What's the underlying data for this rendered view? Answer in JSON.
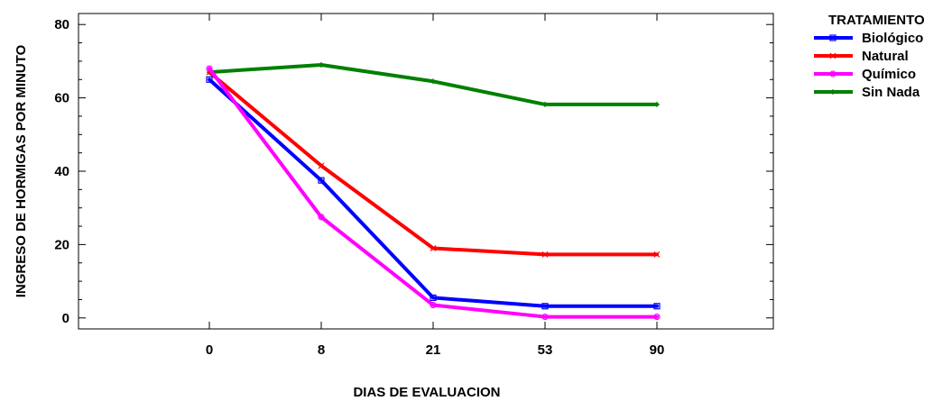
{
  "chart_data": {
    "type": "line",
    "xlabel": "DIAS DE EVALUACION",
    "ylabel": "INGRESO DE HORMIGAS POR MINUTO",
    "categories": [
      "0",
      "8",
      "21",
      "53",
      "90"
    ],
    "ylim": [
      -3,
      83
    ],
    "yticks": [
      0,
      20,
      40,
      60,
      80
    ],
    "grid": false,
    "legend": {
      "title": "TRATAMIENTO",
      "placement": "right-top"
    },
    "series": [
      {
        "name": "Biológico",
        "color": "#0000ff",
        "marker": "square",
        "values": [
          65,
          37.5,
          5.5,
          3.2,
          3.2
        ]
      },
      {
        "name": "Natural",
        "color": "#ff0000",
        "marker": "x",
        "values": [
          67,
          41.5,
          19,
          17.3,
          17.3
        ]
      },
      {
        "name": "Químico",
        "color": "#ff00ff",
        "marker": "circle",
        "values": [
          68,
          27.5,
          3.5,
          0.3,
          0.3
        ]
      },
      {
        "name": "Sin Nada",
        "color": "#008000",
        "marker": "plus",
        "values": [
          67,
          69,
          64.5,
          58.2,
          58.2
        ]
      }
    ]
  }
}
